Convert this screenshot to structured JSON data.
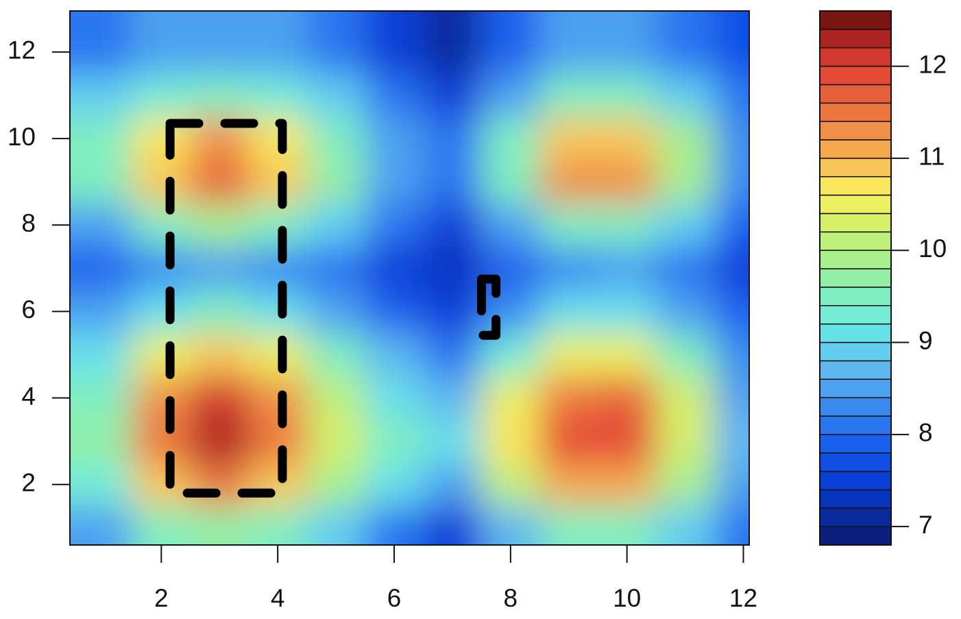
{
  "chart_data": {
    "type": "contour",
    "x": [
      1,
      2,
      3,
      4,
      5,
      6,
      7,
      8,
      9,
      10,
      11,
      12
    ],
    "y": [
      1,
      2,
      3,
      4,
      5,
      6,
      7,
      8,
      9,
      10,
      11,
      12
    ],
    "z": [
      [
        8.6,
        9.4,
        9.7,
        9.4,
        8.8,
        8.2,
        7.6,
        8.7,
        9.4,
        9.5,
        8.9,
        8.1
      ],
      [
        9.3,
        10.8,
        11.4,
        10.8,
        9.8,
        9.0,
        8.5,
        10.0,
        11.0,
        11.1,
        9.9,
        8.5
      ],
      [
        9.7,
        11.5,
        12.3,
        11.5,
        10.2,
        9.4,
        9.0,
        10.7,
        11.8,
        11.8,
        10.3,
        8.7
      ],
      [
        9.6,
        11.3,
        12.0,
        11.3,
        10.1,
        9.2,
        8.7,
        10.4,
        11.5,
        11.6,
        10.2,
        8.6
      ],
      [
        9.2,
        10.4,
        10.9,
        10.4,
        9.6,
        8.7,
        8.1,
        9.3,
        10.4,
        10.5,
        9.6,
        8.3
      ],
      [
        8.4,
        9.2,
        9.5,
        9.2,
        8.6,
        7.9,
        7.5,
        8.3,
        9.1,
        9.2,
        8.6,
        7.8
      ],
      [
        7.9,
        8.3,
        8.5,
        8.3,
        8.0,
        7.5,
        7.2,
        7.9,
        8.3,
        8.4,
        8.1,
        7.6
      ],
      [
        8.6,
        9.4,
        9.8,
        9.4,
        8.8,
        8.0,
        7.5,
        8.6,
        9.6,
        9.6,
        8.9,
        7.9
      ],
      [
        9.5,
        10.9,
        11.6,
        10.9,
        9.7,
        8.6,
        8.1,
        9.6,
        11.2,
        11.2,
        9.9,
        8.3
      ],
      [
        9.5,
        10.6,
        11.2,
        10.6,
        9.6,
        8.5,
        8.0,
        9.5,
        10.8,
        10.9,
        9.8,
        8.3
      ],
      [
        8.8,
        9.3,
        9.5,
        9.3,
        8.8,
        8.1,
        7.6,
        8.6,
        9.4,
        9.4,
        8.8,
        8.0
      ],
      [
        8.2,
        8.5,
        8.6,
        8.5,
        8.2,
        7.6,
        7.1,
        7.8,
        8.6,
        8.6,
        8.2,
        7.7
      ]
    ],
    "xlim": [
      0.43,
      12.1
    ],
    "xticks": [
      2,
      4,
      6,
      8,
      10,
      12
    ],
    "ylim": [
      0.6,
      12.95
    ],
    "yticks": [
      2,
      4,
      6,
      8,
      10,
      12
    ],
    "zlim": [
      6.8,
      12.6
    ],
    "zticks": [
      7,
      8,
      9,
      10,
      11,
      12
    ],
    "colors": [
      "#0b1f7d",
      "#0a2a9e",
      "#0833bd",
      "#0a3fd8",
      "#0f4fe6",
      "#1a62ee",
      "#2a76f0",
      "#3b8af0",
      "#4ea0f0",
      "#5fb6f0",
      "#62cdef",
      "#68e0ea",
      "#73ecd8",
      "#80eec0",
      "#93eea6",
      "#a8ef8e",
      "#bff07a",
      "#d6f06a",
      "#ecef5e",
      "#fae65a",
      "#f8c656",
      "#f5a84e",
      "#f08f46",
      "#ec7640",
      "#e8603a",
      "#e44a34",
      "#d2382e",
      "#ab2420",
      "#7a1612"
    ],
    "regions": [
      {
        "x": [
          2.15,
          4.08
        ],
        "y": [
          1.8,
          10.35
        ]
      },
      {
        "x": [
          7.5,
          7.75
        ],
        "y": [
          5.45,
          6.75
        ]
      }
    ]
  }
}
